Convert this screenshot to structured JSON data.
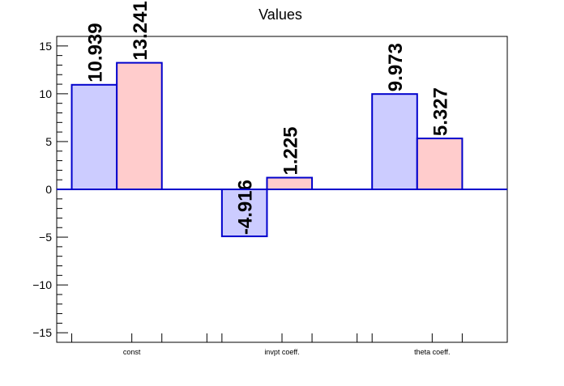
{
  "chart_data": {
    "type": "bar",
    "title": "Values",
    "categories": [
      "const",
      "invpt coeff.",
      "theta coeff."
    ],
    "series": [
      {
        "values": [
          10.939,
          -4.916,
          9.973
        ],
        "labels": [
          "10.939",
          "-4.916",
          "9.973"
        ],
        "fill": "#ccccff",
        "stroke": "#0000cc"
      },
      {
        "values": [
          13.241,
          1.225,
          5.327
        ],
        "labels": [
          "13.241",
          "1.225",
          "5.327"
        ],
        "fill": "#ffcccc",
        "stroke": "#0000cc"
      }
    ],
    "ylim": [
      -16,
      16
    ],
    "yticks": [
      -15,
      -10,
      -5,
      0,
      5,
      10,
      15
    ],
    "ytick_labels": [
      "−15",
      "−10",
      "−5",
      "0",
      "5",
      "10",
      "15"
    ],
    "grid": false,
    "legend": "none"
  }
}
